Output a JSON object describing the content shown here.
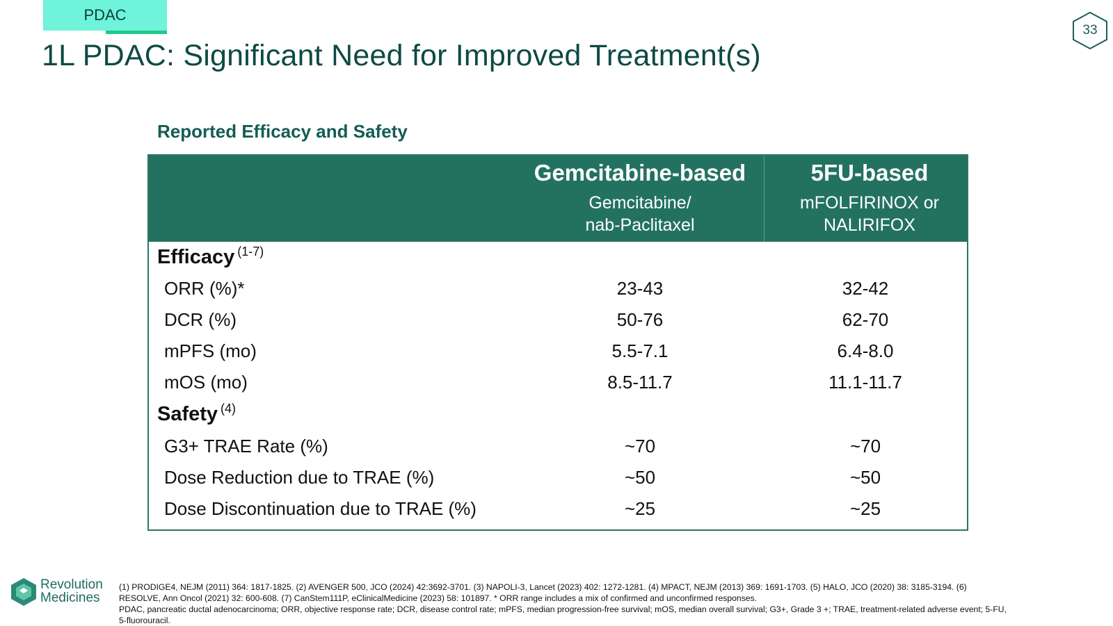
{
  "header": {
    "tag": "PDAC",
    "title": "1L PDAC: Significant Need for Improved Treatment(s)",
    "page_number": "33"
  },
  "section_heading": "Reported Efficacy and Safety",
  "table": {
    "columns": [
      {
        "title": "Gemcitabine-based",
        "sub1": "Gemcitabine/",
        "sub2": "nab-Paclitaxel"
      },
      {
        "title": "5FU-based",
        "sub1": "mFOLFIRINOX or",
        "sub2": "NALIRIFOX"
      }
    ],
    "efficacy": {
      "label": "Efficacy",
      "ref": "(1-7)",
      "rows": [
        {
          "label": "ORR (%)*",
          "gem": "23-43",
          "fu": "32-42"
        },
        {
          "label": "DCR (%)",
          "gem": "50-76",
          "fu": "62-70"
        },
        {
          "label": "mPFS (mo)",
          "gem": "5.5-7.1",
          "fu": "6.4-8.0"
        },
        {
          "label": "mOS (mo)",
          "gem": "8.5-11.7",
          "fu": "11.1-11.7"
        }
      ]
    },
    "safety": {
      "label": "Safety",
      "ref": "(4)",
      "rows": [
        {
          "label": "G3+ TRAE Rate (%)",
          "gem": "~70",
          "fu": "~70"
        },
        {
          "label": "Dose Reduction due to TRAE (%)",
          "gem": "~50",
          "fu": "~50"
        },
        {
          "label": "Dose Discontinuation due to TRAE (%)",
          "gem": "~25",
          "fu": "~25"
        }
      ]
    }
  },
  "logo": {
    "line1": "Revolution",
    "line2": "Medicines"
  },
  "footnotes": [
    "(1)  PRODIGE4, NEJM (2011) 364: 1817-1825. (2) AVENGER 500, JCO (2024) 42:3692-3701. (3) NAPOLI-3, Lancet (2023) 402: 1272-1281. (4) MPACT, NEJM (2013) 369: 1691-1703. (5) HALO, JCO (2020) 38: 3185-3194. (6) RESOLVE, Ann Oncol (2021) 32: 600-608. (7) CanStem111P, eClinicalMedicine (2023) 58: 101897. * ORR range includes a mix of confirmed and unconfirmed responses.",
    "PDAC, pancreatic ductal adenocarcinoma; ORR, objective response rate; DCR, disease control rate; mPFS, median progression-free survival; mOS, median overall survival; G3+, Grade 3 +; TRAE, treatment-related adverse event; 5-FU, 5-fluorouracil."
  ],
  "colors": {
    "accent_tag": "#6ff3da",
    "accent_line": "#20c98e",
    "title": "#0e4a44",
    "table_header": "#23725f"
  }
}
